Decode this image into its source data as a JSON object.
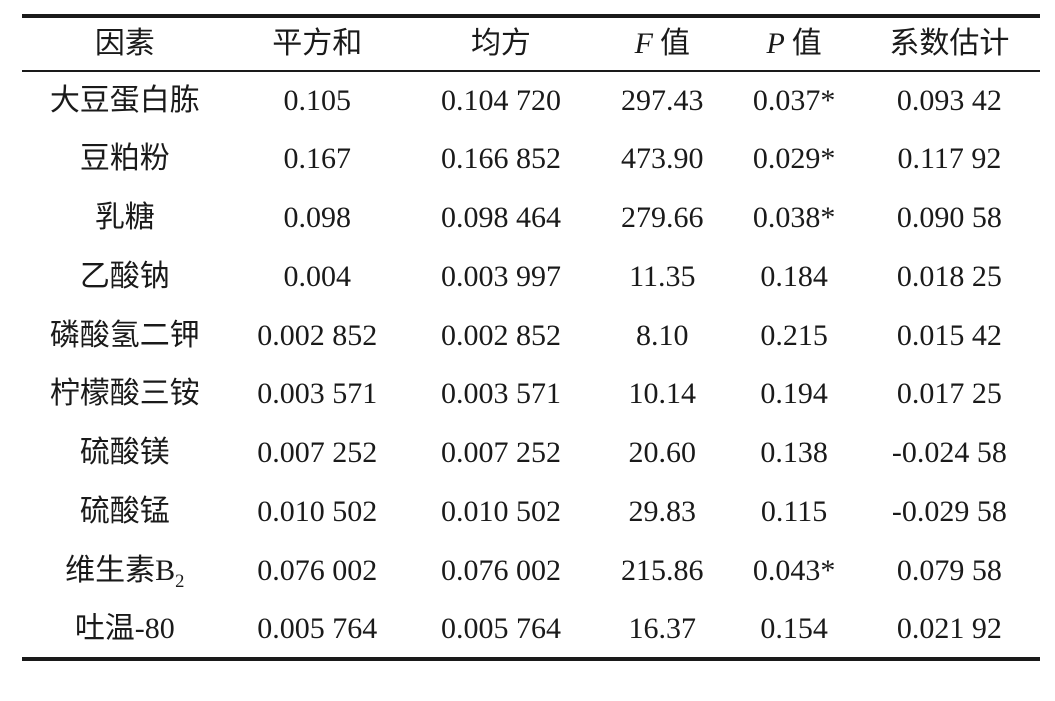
{
  "page": {
    "background_color": "#ffffff",
    "text_color": "#1a1a1a",
    "rule_color": "#1a1a1a"
  },
  "table": {
    "header": {
      "factor": "因素",
      "sum_sq": "平方和",
      "mean_sq": "均方",
      "f_italic": "F",
      "f_text": "值",
      "p_italic": "P",
      "p_text": "值",
      "coef": "系数估计"
    },
    "rows": [
      {
        "factor": "大豆蛋白胨",
        "sum_sq": "0.105",
        "mean_sq": "0.104 720",
        "f": "297.43",
        "p": "0.037*",
        "coef": "0.093 42"
      },
      {
        "factor": "豆粕粉",
        "sum_sq": "0.167",
        "mean_sq": "0.166 852",
        "f": "473.90",
        "p": "0.029*",
        "coef": "0.117 92"
      },
      {
        "factor": "乳糖",
        "sum_sq": "0.098",
        "mean_sq": "0.098 464",
        "f": "279.66",
        "p": "0.038*",
        "coef": "0.090 58"
      },
      {
        "factor": "乙酸钠",
        "sum_sq": "0.004",
        "mean_sq": "0.003 997",
        "f": "11.35",
        "p": "0.184",
        "coef": "0.018 25"
      },
      {
        "factor": "磷酸氢二钾",
        "sum_sq": "0.002 852",
        "mean_sq": "0.002 852",
        "f": "8.10",
        "p": "0.215",
        "coef": "0.015 42"
      },
      {
        "factor": "柠檬酸三铵",
        "sum_sq": "0.003 571",
        "mean_sq": "0.003 571",
        "f": "10.14",
        "p": "0.194",
        "coef": "0.017 25"
      },
      {
        "factor": "硫酸镁",
        "sum_sq": "0.007 252",
        "mean_sq": "0.007 252",
        "f": "20.60",
        "p": "0.138",
        "coef": "-0.024 58"
      },
      {
        "factor": "硫酸锰",
        "sum_sq": "0.010 502",
        "mean_sq": "0.010 502",
        "f": "29.83",
        "p": "0.115",
        "coef": "-0.029 58"
      },
      {
        "factor": "维生素B",
        "factor_sub": "2",
        "sum_sq": "0.076 002",
        "mean_sq": "0.076 002",
        "f": "215.86",
        "p": "0.043*",
        "coef": "0.079 58"
      },
      {
        "factor": "吐温-80",
        "sum_sq": "0.005 764",
        "mean_sq": "0.005 764",
        "f": "16.37",
        "p": "0.154",
        "coef": "0.021 92"
      }
    ]
  }
}
